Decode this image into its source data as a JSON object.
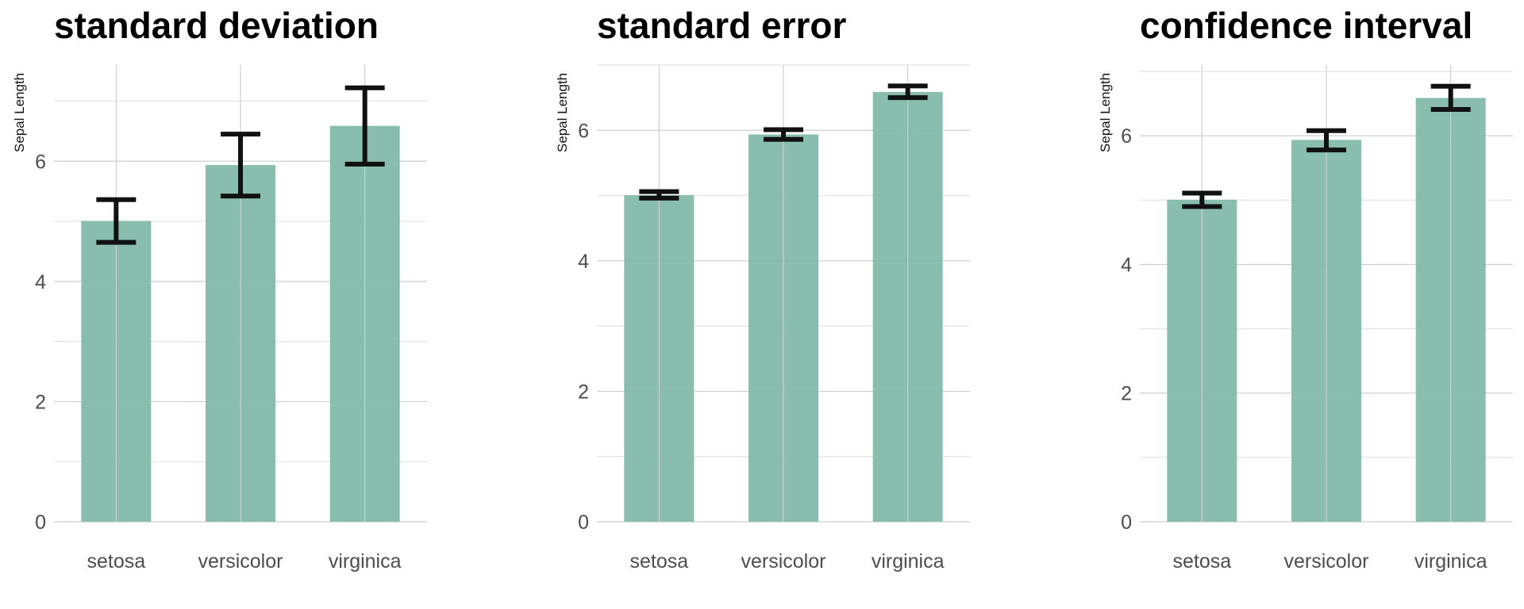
{
  "colors": {
    "bar": "#7fb8a8",
    "error_bar": "#111111",
    "grid": "#cfcfcf"
  },
  "chart_data": [
    {
      "type": "bar",
      "title": "standard deviation",
      "xlabel": "",
      "ylabel": "Sepal Length",
      "categories": [
        "setosa",
        "versicolor",
        "virginica"
      ],
      "values": [
        5.006,
        5.936,
        6.588
      ],
      "error_low": [
        4.65,
        5.42,
        5.95
      ],
      "error_high": [
        5.36,
        6.45,
        7.22
      ],
      "ylim": [
        0,
        7.6
      ],
      "yticks": [
        0,
        2,
        4,
        6
      ],
      "grid": true
    },
    {
      "type": "bar",
      "title": "standard error",
      "xlabel": "",
      "ylabel": "Sepal Length",
      "categories": [
        "setosa",
        "versicolor",
        "virginica"
      ],
      "values": [
        5.006,
        5.936,
        6.588
      ],
      "error_low": [
        4.96,
        5.86,
        6.5
      ],
      "error_high": [
        5.06,
        6.01,
        6.68
      ],
      "ylim": [
        0,
        7.0
      ],
      "yticks": [
        0,
        2,
        4,
        6
      ],
      "grid": true
    },
    {
      "type": "bar",
      "title": "confidence interval",
      "xlabel": "",
      "ylabel": "Sepal Length",
      "categories": [
        "setosa",
        "versicolor",
        "virginica"
      ],
      "values": [
        5.006,
        5.936,
        6.588
      ],
      "error_low": [
        4.9,
        5.78,
        6.41
      ],
      "error_high": [
        5.11,
        6.08,
        6.77
      ],
      "ylim": [
        0,
        7.1
      ],
      "yticks": [
        0,
        2,
        4,
        6
      ],
      "grid": true
    }
  ]
}
